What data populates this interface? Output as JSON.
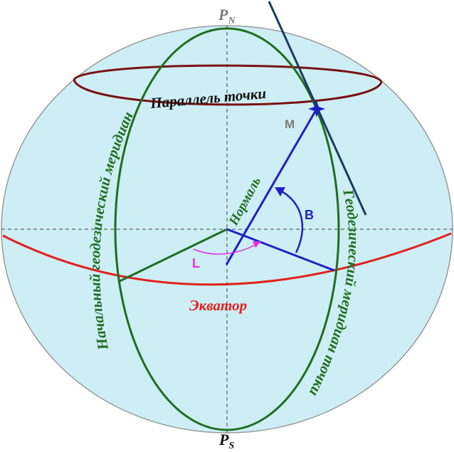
{
  "labels": {
    "north_pole": {
      "letter": "P",
      "sub": "N"
    },
    "south_pole": {
      "letter": "P",
      "sub": "S"
    },
    "point_m": "M",
    "parallel": "Параллель точки",
    "normal": "Нормаль",
    "angle_b": "B",
    "angle_l": "L",
    "equator": "Экватор",
    "prime_meridian": "Начальный геодезический меридиан",
    "point_meridian": "Геодезический меридиан точки"
  },
  "colors": {
    "sphere_fill": "#cdeef4",
    "sphere_stroke": "#9a9a9a",
    "meridian": "#1f6e1f",
    "parallel": "#7a1212",
    "equator": "#e3201e",
    "normal": "#1f1fc8",
    "tangent": "#1a3a66",
    "angle_l_arc": "#e62ee6",
    "pole_label": "#7a7a7a"
  }
}
